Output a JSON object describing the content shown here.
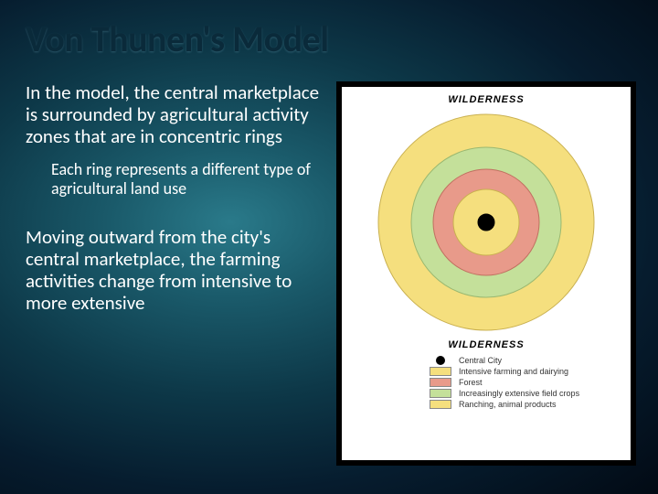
{
  "title": "Von Thunen's Model",
  "text": {
    "para1": "In the model, the central marketplace is surrounded by agricultural activity zones that are in concentric rings",
    "sub1": "Each ring represents a different type of agricultural land use",
    "para2": "Moving outward from the city's central marketplace, the farming activities change from intensive to more extensive"
  },
  "diagram": {
    "wilderness_label": "WILDERNESS",
    "background": "#ffffff",
    "rings": [
      {
        "name": "ranching",
        "radius": 118,
        "fill": "#f5df7e",
        "stroke": "#c9b050"
      },
      {
        "name": "field",
        "radius": 82,
        "fill": "#c4e09a",
        "stroke": "#9ab870"
      },
      {
        "name": "forest",
        "radius": 58,
        "fill": "#e89a8a",
        "stroke": "#c07060"
      },
      {
        "name": "intensive",
        "radius": 36,
        "fill": "#f5df7e",
        "stroke": "#c9b050"
      },
      {
        "name": "city",
        "radius": 9,
        "fill": "#000000",
        "stroke": "#000000"
      }
    ],
    "svg_size": 248
  },
  "legend": [
    {
      "type": "circle",
      "color": "#000000",
      "label": "Central City"
    },
    {
      "type": "rect",
      "color": "#f5df7e",
      "label": "Intensive farming and dairying"
    },
    {
      "type": "rect",
      "color": "#e89a8a",
      "label": "Forest"
    },
    {
      "type": "rect",
      "color": "#c4e09a",
      "label": "Increasingly extensive field crops"
    },
    {
      "type": "rect",
      "color": "#f5df7e",
      "label": "Ranching, animal products"
    }
  ],
  "colors": {
    "title_color": "#0a2a3a",
    "body_text": "#ffffff",
    "legend_text": "#333333"
  },
  "fonts": {
    "title_size": 40,
    "para_size": 21,
    "sub_size": 18,
    "wild_size": 11,
    "legend_size": 9
  }
}
